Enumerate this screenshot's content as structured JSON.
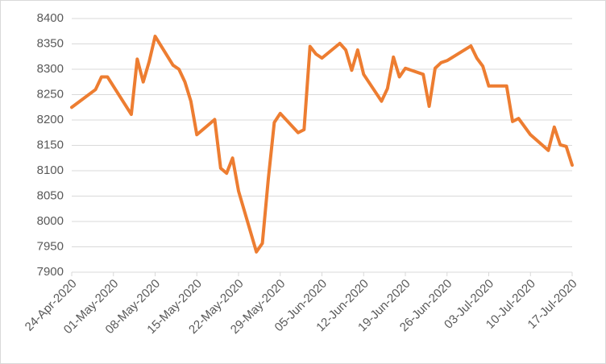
{
  "chart_data": {
    "type": "line",
    "x": [
      "2020-04-24",
      "2020-04-28",
      "2020-04-29",
      "2020-04-30",
      "2020-05-04",
      "2020-05-05",
      "2020-05-06",
      "2020-05-07",
      "2020-05-08",
      "2020-05-11",
      "2020-05-12",
      "2020-05-13",
      "2020-05-14",
      "2020-05-15",
      "2020-05-18",
      "2020-05-19",
      "2020-05-20",
      "2020-05-21",
      "2020-05-22",
      "2020-05-25",
      "2020-05-26",
      "2020-05-27",
      "2020-05-28",
      "2020-05-29",
      "2020-06-01",
      "2020-06-02",
      "2020-06-03",
      "2020-06-04",
      "2020-06-05",
      "2020-06-08",
      "2020-06-09",
      "2020-06-10",
      "2020-06-11",
      "2020-06-12",
      "2020-06-15",
      "2020-06-16",
      "2020-06-17",
      "2020-06-18",
      "2020-06-19",
      "2020-06-22",
      "2020-06-23",
      "2020-06-24",
      "2020-06-25",
      "2020-06-26",
      "2020-06-30",
      "2020-07-01",
      "2020-07-02",
      "2020-07-03",
      "2020-07-06",
      "2020-07-07",
      "2020-07-08",
      "2020-07-10",
      "2020-07-13",
      "2020-07-14",
      "2020-07-15",
      "2020-07-16",
      "2020-07-17"
    ],
    "series": [
      {
        "color": "#ed7d31",
        "values": [
          8225,
          8260,
          8285,
          8285,
          8211,
          8320,
          8275,
          8315,
          8365,
          8308,
          8300,
          8275,
          8237,
          8171,
          8201,
          8105,
          8095,
          8125,
          8060,
          7940,
          7957,
          8084,
          8195,
          8213,
          8175,
          8181,
          8345,
          8330,
          8322,
          8351,
          8338,
          8298,
          8338,
          8290,
          8237,
          8262,
          8324,
          8285,
          8302,
          8290,
          8227,
          8302,
          8313,
          8317,
          8346,
          8322,
          8306,
          8267,
          8267,
          8197,
          8203,
          8171,
          8140,
          8186,
          8151,
          8148,
          8111
        ]
      }
    ],
    "xlim": [
      "2020-04-24",
      "2020-07-17"
    ],
    "xticks": [
      {
        "value": "2020-04-24",
        "label": "24-Apr-2020"
      },
      {
        "value": "2020-05-01",
        "label": "01-May-2020"
      },
      {
        "value": "2020-05-08",
        "label": "08-May-2020"
      },
      {
        "value": "2020-05-15",
        "label": "15-May-2020"
      },
      {
        "value": "2020-05-22",
        "label": "22-May-2020"
      },
      {
        "value": "2020-05-29",
        "label": "29-May-2020"
      },
      {
        "value": "2020-06-05",
        "label": "05-Jun-2020"
      },
      {
        "value": "2020-06-12",
        "label": "12-Jun-2020"
      },
      {
        "value": "2020-06-19",
        "label": "19-Jun-2020"
      },
      {
        "value": "2020-06-26",
        "label": "26-Jun-2020"
      },
      {
        "value": "2020-07-03",
        "label": "03-Jul-2020"
      },
      {
        "value": "2020-07-10",
        "label": "10-Jul-2020"
      },
      {
        "value": "2020-07-17",
        "label": "17-Jul-2020"
      }
    ],
    "ylim": [
      7900,
      8400
    ],
    "yticks": [
      7900,
      7950,
      8000,
      8050,
      8100,
      8150,
      8200,
      8250,
      8300,
      8350,
      8400
    ],
    "grid": true
  }
}
